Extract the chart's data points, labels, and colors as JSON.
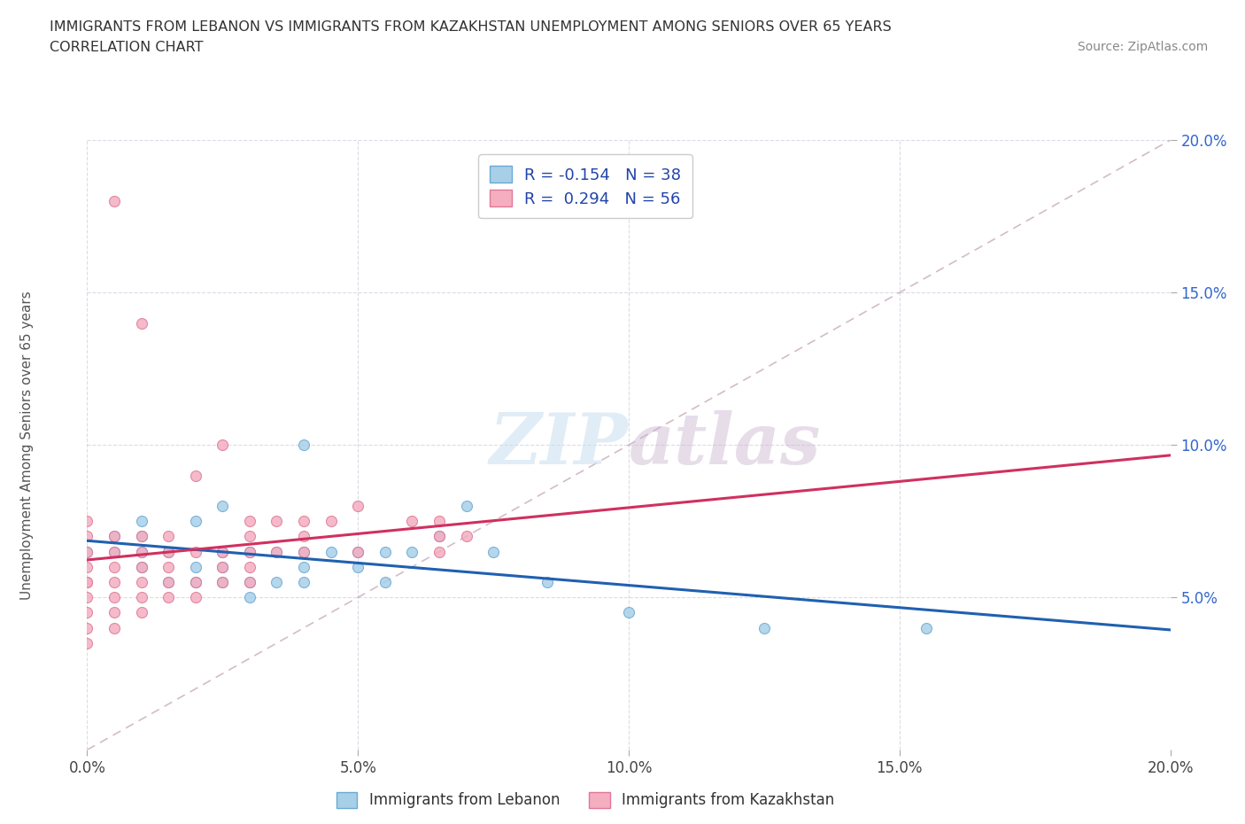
{
  "title_line1": "IMMIGRANTS FROM LEBANON VS IMMIGRANTS FROM KAZAKHSTAN UNEMPLOYMENT AMONG SENIORS OVER 65 YEARS",
  "title_line2": "CORRELATION CHART",
  "source_text": "Source: ZipAtlas.com",
  "ylabel": "Unemployment Among Seniors over 65 years",
  "xlim": [
    0.0,
    0.2
  ],
  "ylim": [
    0.0,
    0.2
  ],
  "x_tick_values": [
    0.0,
    0.05,
    0.1,
    0.15,
    0.2
  ],
  "x_tick_labels": [
    "0.0%",
    "5.0%",
    "10.0%",
    "15.0%",
    "20.0%"
  ],
  "y_tick_values": [
    0.05,
    0.1,
    0.15,
    0.2
  ],
  "y_tick_labels": [
    "5.0%",
    "10.0%",
    "15.0%",
    "20.0%"
  ],
  "lebanon_color": "#a8cfe8",
  "lebanon_edge": "#6aaad4",
  "kazakhstan_color": "#f4aec0",
  "kazakhstan_edge": "#e07898",
  "legend_label_lebanon": "Immigrants from Lebanon",
  "legend_label_kazakhstan": "Immigrants from Kazakhstan",
  "R_lebanon": -0.154,
  "N_lebanon": 38,
  "R_kazakhstan": 0.294,
  "N_kazakhstan": 56,
  "watermark_zip": "ZIP",
  "watermark_atlas": "atlas",
  "trendline_lebanon_color": "#2060b0",
  "trendline_kazakhstan_color": "#d03060",
  "diag_color": "#c0a0b0",
  "lebanon_x": [
    0.0,
    0.005,
    0.005,
    0.01,
    0.01,
    0.01,
    0.01,
    0.015,
    0.015,
    0.02,
    0.02,
    0.02,
    0.025,
    0.025,
    0.025,
    0.025,
    0.03,
    0.03,
    0.03,
    0.035,
    0.035,
    0.04,
    0.04,
    0.04,
    0.04,
    0.045,
    0.05,
    0.05,
    0.055,
    0.055,
    0.06,
    0.065,
    0.07,
    0.075,
    0.085,
    0.1,
    0.125,
    0.155
  ],
  "lebanon_y": [
    0.065,
    0.065,
    0.07,
    0.06,
    0.065,
    0.07,
    0.075,
    0.055,
    0.065,
    0.055,
    0.06,
    0.075,
    0.055,
    0.06,
    0.065,
    0.08,
    0.05,
    0.055,
    0.065,
    0.055,
    0.065,
    0.055,
    0.06,
    0.065,
    0.1,
    0.065,
    0.06,
    0.065,
    0.055,
    0.065,
    0.065,
    0.07,
    0.08,
    0.065,
    0.055,
    0.045,
    0.04,
    0.04
  ],
  "kazakhstan_x": [
    0.0,
    0.0,
    0.0,
    0.0,
    0.0,
    0.0,
    0.0,
    0.0,
    0.0,
    0.0,
    0.005,
    0.005,
    0.005,
    0.005,
    0.005,
    0.005,
    0.005,
    0.005,
    0.01,
    0.01,
    0.01,
    0.01,
    0.01,
    0.01,
    0.01,
    0.015,
    0.015,
    0.015,
    0.015,
    0.015,
    0.02,
    0.02,
    0.02,
    0.02,
    0.025,
    0.025,
    0.025,
    0.025,
    0.03,
    0.03,
    0.03,
    0.03,
    0.03,
    0.035,
    0.035,
    0.04,
    0.04,
    0.04,
    0.045,
    0.05,
    0.05,
    0.06,
    0.065,
    0.065,
    0.065,
    0.07
  ],
  "kazakhstan_y": [
    0.035,
    0.04,
    0.045,
    0.05,
    0.055,
    0.055,
    0.06,
    0.065,
    0.07,
    0.075,
    0.04,
    0.045,
    0.05,
    0.055,
    0.06,
    0.065,
    0.07,
    0.18,
    0.045,
    0.05,
    0.055,
    0.06,
    0.065,
    0.07,
    0.14,
    0.05,
    0.055,
    0.06,
    0.065,
    0.07,
    0.05,
    0.055,
    0.065,
    0.09,
    0.055,
    0.06,
    0.065,
    0.1,
    0.055,
    0.06,
    0.065,
    0.07,
    0.075,
    0.065,
    0.075,
    0.065,
    0.07,
    0.075,
    0.075,
    0.065,
    0.08,
    0.075,
    0.065,
    0.07,
    0.075,
    0.07
  ]
}
